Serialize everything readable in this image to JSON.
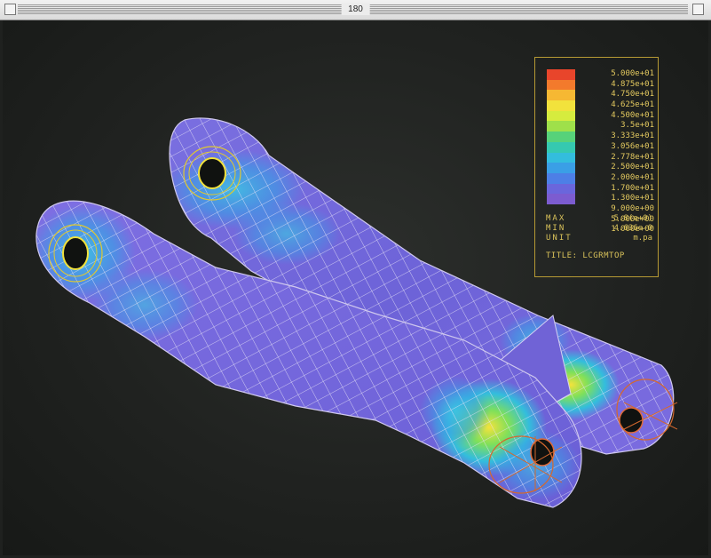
{
  "window": {
    "title": "180"
  },
  "legend": {
    "levels": [
      {
        "label": "5.000e+01",
        "color": "#e8452b"
      },
      {
        "label": "4.875e+01",
        "color": "#f37a2c"
      },
      {
        "label": "4.750e+01",
        "color": "#f6b833"
      },
      {
        "label": "4.625e+01",
        "color": "#f2e23c"
      },
      {
        "label": "4.500e+01",
        "color": "#d6ec3e"
      },
      {
        "label": "3.5e+01",
        "color": "#9fe04a"
      },
      {
        "label": "3.333e+01",
        "color": "#57d27a"
      },
      {
        "label": "3.056e+01",
        "color": "#35c9b0"
      },
      {
        "label": "2.778e+01",
        "color": "#33bddd"
      },
      {
        "label": "2.500e+01",
        "color": "#3a9fe6"
      },
      {
        "label": "2.000e+01",
        "color": "#4d7fe6"
      },
      {
        "label": "1.700e+01",
        "color": "#6a66dc"
      },
      {
        "label": "1.300e+01",
        "color": "#7c5cd0"
      }
    ],
    "extra_labels": [
      "9.000e+00",
      "5.000e+00",
      "1.000e+00"
    ],
    "stats": [
      {
        "key": "MAX",
        "value": "5.8(e+0)"
      },
      {
        "key": "MIN",
        "value": "4.636e-0"
      },
      {
        "key": "UNIT",
        "value": "m.pa"
      }
    ],
    "title": "TITLE: LCGRMTOP"
  }
}
